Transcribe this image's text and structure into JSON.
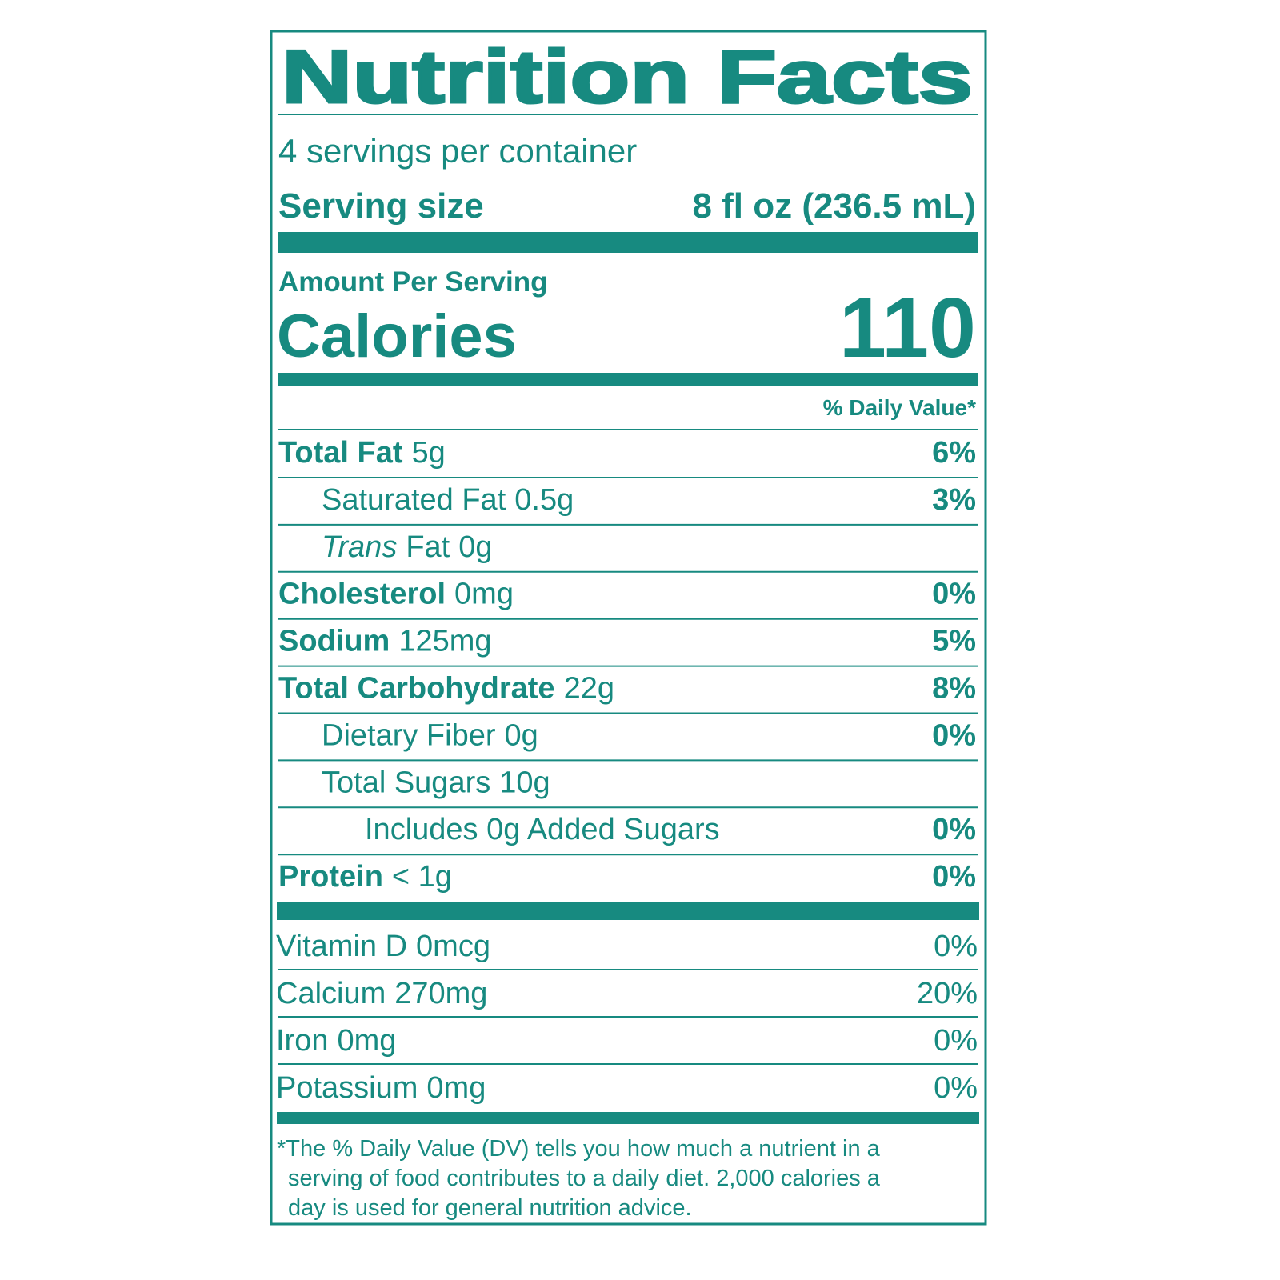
{
  "header": {
    "title": "Nutrition Facts",
    "servings": "4 servings per container",
    "serving_size_label": "Serving size",
    "serving_size_value": "8 fl oz (236.5 mL)"
  },
  "calories": {
    "amount_per_serving": "Amount Per Serving",
    "label": "Calories",
    "value": "110"
  },
  "daily_value_header": "% Daily Value*",
  "nutrients": [
    {
      "name": "Total Fat",
      "amount": "5g",
      "dv": "6%"
    },
    {
      "name": "Saturated Fat",
      "amount": "0.5g",
      "dv": "3%"
    },
    {
      "name_italic": "Trans",
      "name": "Fat",
      "amount": "0g"
    },
    {
      "name": "Cholesterol",
      "amount": "0mg",
      "dv": "0%"
    },
    {
      "name": "Sodium",
      "amount": "125mg",
      "dv": "5%"
    },
    {
      "name": "Total Carbohydrate",
      "amount": "22g",
      "dv": "8%"
    },
    {
      "name": "Dietary Fiber",
      "amount": "0g",
      "dv": "0%"
    },
    {
      "name": "Total Sugars",
      "amount": "10g"
    },
    {
      "name": "Includes 0g Added Sugars",
      "dv": "0%"
    },
    {
      "name": "Protein",
      "amount": "< 1g",
      "dv": "0%"
    }
  ],
  "vitamins": [
    {
      "name": "Vitamin D",
      "amount": "0mcg",
      "dv": "0%"
    },
    {
      "name": "Calcium",
      "amount": "270mg",
      "dv": "20%"
    },
    {
      "name": "Iron",
      "amount": "0mg",
      "dv": "0%"
    },
    {
      "name": "Potassium",
      "amount": "0mg",
      "dv": "0%"
    }
  ],
  "footnote": [
    "*The % Daily Value (DV) tells you how much a nutrient in a",
    "serving of food contributes to a daily diet. 2,000 calories a",
    "day is used for general nutrition advice."
  ]
}
